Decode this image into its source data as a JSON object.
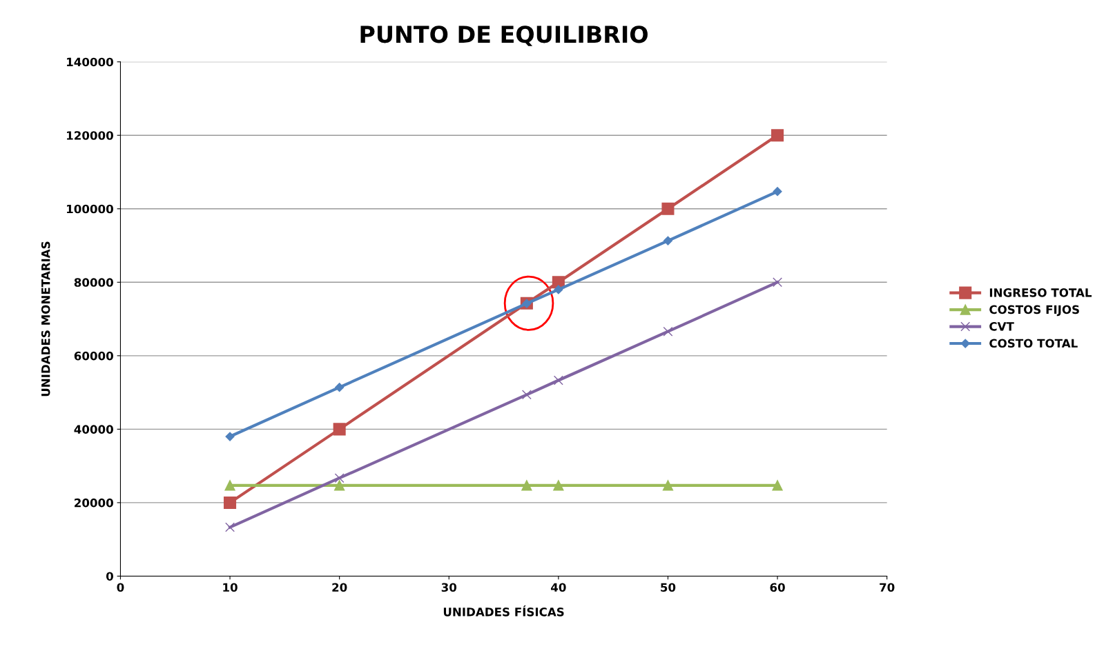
{
  "chart_data": {
    "type": "line",
    "title": "PUNTO DE EQUILIBRIO",
    "xlabel": "UNIDADES FÍSICAS",
    "ylabel": "UNIDADES MONETARIAS",
    "x": [
      10,
      20,
      37.1,
      40,
      50,
      60
    ],
    "series": [
      {
        "name": "INGRESO TOTAL",
        "color": "#c0504d",
        "marker": "square",
        "values": [
          20000,
          40000,
          74300,
          80000,
          100000,
          120000
        ]
      },
      {
        "name": "COSTOS FIJOS",
        "color": "#9bbb59",
        "marker": "triangle",
        "values": [
          24700,
          24700,
          24700,
          24700,
          24700,
          24700
        ]
      },
      {
        "name": "CVT",
        "color": "#8064a2",
        "marker": "cross",
        "values": [
          13300,
          26700,
          49400,
          53300,
          66600,
          80000
        ]
      },
      {
        "name": "COSTO TOTAL",
        "color": "#4f81bd",
        "marker": "diamond",
        "values": [
          38000,
          51400,
          74200,
          78000,
          91300,
          104700
        ]
      }
    ],
    "xlim": [
      0,
      70
    ],
    "xticks": [
      0,
      10,
      20,
      30,
      40,
      50,
      60,
      70
    ],
    "ylim": [
      0,
      140000
    ],
    "yticks": [
      0,
      20000,
      40000,
      60000,
      80000,
      100000,
      120000,
      140000
    ],
    "grid": "y",
    "legend": "right",
    "line_style": "solid"
  }
}
